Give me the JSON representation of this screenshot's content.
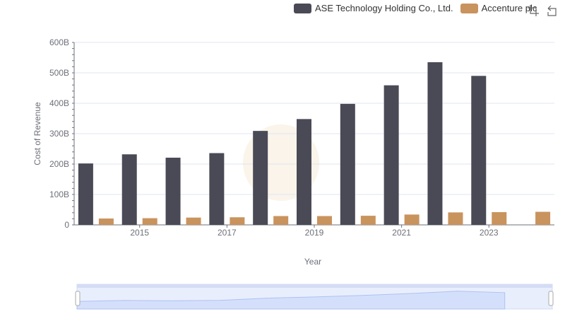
{
  "chart_data": {
    "type": "bar",
    "title": "",
    "xlabel": "Year",
    "ylabel": "Cost of Revenue",
    "categories": [
      "2014",
      "2015",
      "2016",
      "2017",
      "2018",
      "2019",
      "2020",
      "2021",
      "2022",
      "2023",
      "2024"
    ],
    "x_tick_labels": [
      "2015",
      "2017",
      "2019",
      "2021",
      "2023"
    ],
    "y_tick_labels": [
      "0",
      "100B",
      "200B",
      "300B",
      "400B",
      "500B",
      "600B"
    ],
    "ylim": [
      0,
      600
    ],
    "series": [
      {
        "name": "ASE Technology Holding Co., Ltd.",
        "color": "#4a4a56",
        "values": [
          202,
          232,
          221,
          236,
          309,
          348,
          398,
          459,
          535,
          490,
          null
        ]
      },
      {
        "name": "Accenture plc",
        "color": "#c9935e",
        "values": [
          21,
          22,
          24,
          25,
          29,
          29,
          30,
          34,
          41,
          42,
          43
        ]
      }
    ],
    "legend_position": "top-right",
    "grid": true
  },
  "toolbox": {
    "restore_icon": "restore-icon",
    "zoom_icon": "zoom-icon"
  },
  "colors": {
    "axis": "#6e7079",
    "grid": "#e0e6f1",
    "slider_fill": "#d4e0fb",
    "slider_border": "#aec2f2"
  }
}
